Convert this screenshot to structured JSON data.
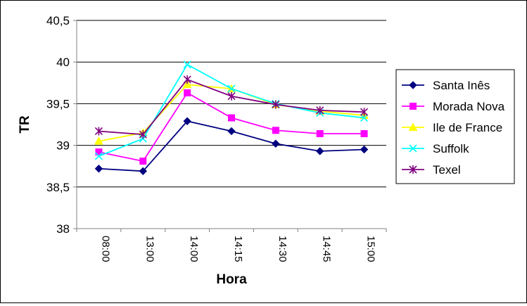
{
  "chart_data": {
    "type": "line",
    "xlabel": "Hora",
    "ylabel": "TR",
    "ylim": [
      38,
      40.5
    ],
    "yticks": [
      "38",
      "38,5",
      "39",
      "39,5",
      "40",
      "40,5"
    ],
    "categories": [
      "08:00",
      "13:00",
      "14:00",
      "14:15",
      "14:30",
      "14:45",
      "15:00"
    ],
    "grid": true,
    "legend_position": "right",
    "series": [
      {
        "name": "Santa Inês",
        "color": "#000080",
        "marker": "diamond",
        "values": [
          38.72,
          38.69,
          39.29,
          39.17,
          39.02,
          38.93,
          38.95
        ]
      },
      {
        "name": "Morada Nova",
        "color": "#FF00FF",
        "marker": "square",
        "values": [
          38.92,
          38.81,
          39.63,
          39.33,
          39.18,
          39.14,
          39.14
        ]
      },
      {
        "name": "Ile de France",
        "color": "#FFFF00",
        "marker": "triangle",
        "values": [
          39.05,
          39.15,
          39.73,
          39.68,
          39.49,
          39.41,
          39.36
        ]
      },
      {
        "name": "Suffolk",
        "color": "#00FFFF",
        "marker": "x",
        "values": [
          38.87,
          39.08,
          39.97,
          39.68,
          39.5,
          39.39,
          39.33
        ]
      },
      {
        "name": "Texel",
        "color": "#800080",
        "marker": "star",
        "values": [
          39.17,
          39.13,
          39.79,
          39.59,
          39.49,
          39.42,
          39.4
        ]
      }
    ]
  }
}
